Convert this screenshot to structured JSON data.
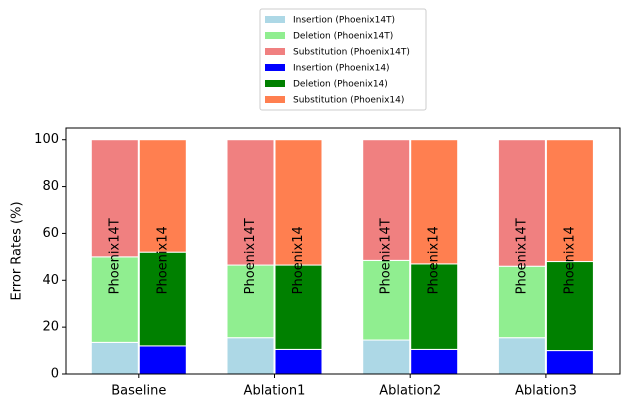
{
  "chart_data": {
    "type": "bar",
    "stacked": true,
    "categories": [
      "Baseline",
      "Ablation1",
      "Ablation2",
      "Ablation3"
    ],
    "ylabel": "Error Rates (%)",
    "xlabel": "",
    "ylim": [
      0,
      105
    ],
    "yticks": [
      "0",
      "20",
      "40",
      "60",
      "80",
      "100"
    ],
    "groups": [
      {
        "name": "Phoenix14T",
        "bar_label": "Phoenix14T",
        "components": [
          {
            "name": "Insertion (Phoenix14T)",
            "color": "#add8e6",
            "values": [
              13.5,
              15.5,
              14.5,
              15.5
            ]
          },
          {
            "name": "Deletion (Phoenix14T)",
            "color": "#90ee90",
            "values": [
              36.5,
              31.0,
              34.0,
              30.5
            ]
          },
          {
            "name": "Substitution (Phoenix14T)",
            "color": "#f08080",
            "values": [
              50.0,
              53.5,
              51.5,
              54.0
            ]
          }
        ]
      },
      {
        "name": "Phoenix14",
        "bar_label": "Phoenix14",
        "components": [
          {
            "name": "Insertion (Phoenix14)",
            "color": "#0000ff",
            "values": [
              12.0,
              10.5,
              10.5,
              10.0
            ]
          },
          {
            "name": "Deletion (Phoenix14)",
            "color": "#008000",
            "values": [
              40.0,
              36.0,
              36.5,
              38.0
            ]
          },
          {
            "name": "Substitution (Phoenix14)",
            "color": "#ff7f50",
            "values": [
              48.0,
              53.5,
              53.0,
              52.0
            ]
          }
        ]
      }
    ],
    "legend": [
      {
        "label": "Insertion (Phoenix14T)",
        "color": "#add8e6"
      },
      {
        "label": "Deletion (Phoenix14T)",
        "color": "#90ee90"
      },
      {
        "label": "Substitution (Phoenix14T)",
        "color": "#f08080"
      },
      {
        "label": "Insertion (Phoenix14)",
        "color": "#0000ff"
      },
      {
        "label": "Deletion (Phoenix14)",
        "color": "#008000"
      },
      {
        "label": "Substitution (Phoenix14)",
        "color": "#ff7f50"
      }
    ],
    "legend_position": "top-center"
  }
}
